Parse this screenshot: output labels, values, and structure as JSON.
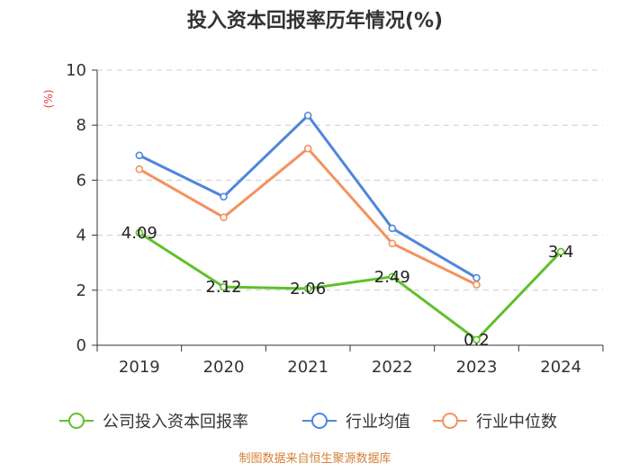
{
  "chart_data": {
    "type": "line",
    "title": "投入资本回报率历年情况(%)",
    "ylabel": "(%)",
    "xlabel": "",
    "categories": [
      "2019",
      "2020",
      "2021",
      "2022",
      "2023",
      "2024"
    ],
    "ylim": [
      0,
      10
    ],
    "yticks": [
      "0",
      "2",
      "4",
      "6",
      "8",
      "10"
    ],
    "grid": true,
    "legend_position": "bottom",
    "series": [
      {
        "name": "公司投入资本回报率",
        "color": "#5fc02a",
        "values": [
          4.09,
          2.12,
          2.06,
          2.49,
          0.2,
          3.4
        ],
        "labels": [
          "4.09",
          "2.12",
          "2.06",
          "2.49",
          "0.2",
          "3.4"
        ]
      },
      {
        "name": "行业均值",
        "color": "#4f86dd",
        "values": [
          6.9,
          5.4,
          8.35,
          4.25,
          2.45,
          null
        ]
      },
      {
        "name": "行业中位数",
        "color": "#f5915e",
        "values": [
          6.4,
          4.65,
          7.15,
          3.7,
          2.2,
          null
        ]
      }
    ]
  },
  "footer": {
    "source": "制图数据来自恒生聚源数据库"
  }
}
